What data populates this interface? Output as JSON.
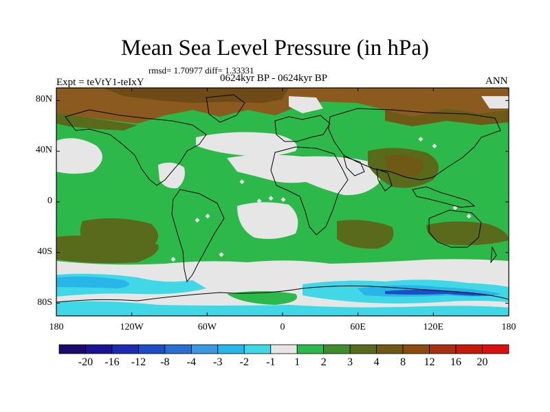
{
  "title": "Mean Sea Level Pressure (in hPa)",
  "stats": "rmsd= 1.70977 diff= 1.33331",
  "left_label": "Expt = teVtY1-teIxY",
  "center_label": "0624kyr BP - 0624kyr BP",
  "right_label": "ANN",
  "map": {
    "lon_ticks": [
      "180",
      "120W",
      "60W",
      "0",
      "60E",
      "120E",
      "180"
    ],
    "lat_ticks": [
      "80N",
      "40N",
      "0",
      "40S",
      "80S"
    ],
    "lat_tick_values": [
      80,
      40,
      0,
      -40,
      -80
    ],
    "lon_range": [
      -180,
      180
    ],
    "lat_range": [
      -90,
      90
    ]
  },
  "colorbar": {
    "labels": [
      "-20",
      "-16",
      "-12",
      "-8",
      "-4",
      "-3",
      "-2",
      "-1",
      "1",
      "2",
      "3",
      "4",
      "8",
      "12",
      "16",
      "20"
    ],
    "colors": [
      "#1a0a6b",
      "#1a1494",
      "#1b2cb0",
      "#1e4cc4",
      "#2a6fd0",
      "#3c96e0",
      "#28b6e8",
      "#40d8e6",
      "#e6e6e6",
      "#2db84a",
      "#3f8e2e",
      "#596a1d",
      "#6e5a16",
      "#8f4a12",
      "#a83010",
      "#c41a0a",
      "#d81010"
    ]
  }
}
